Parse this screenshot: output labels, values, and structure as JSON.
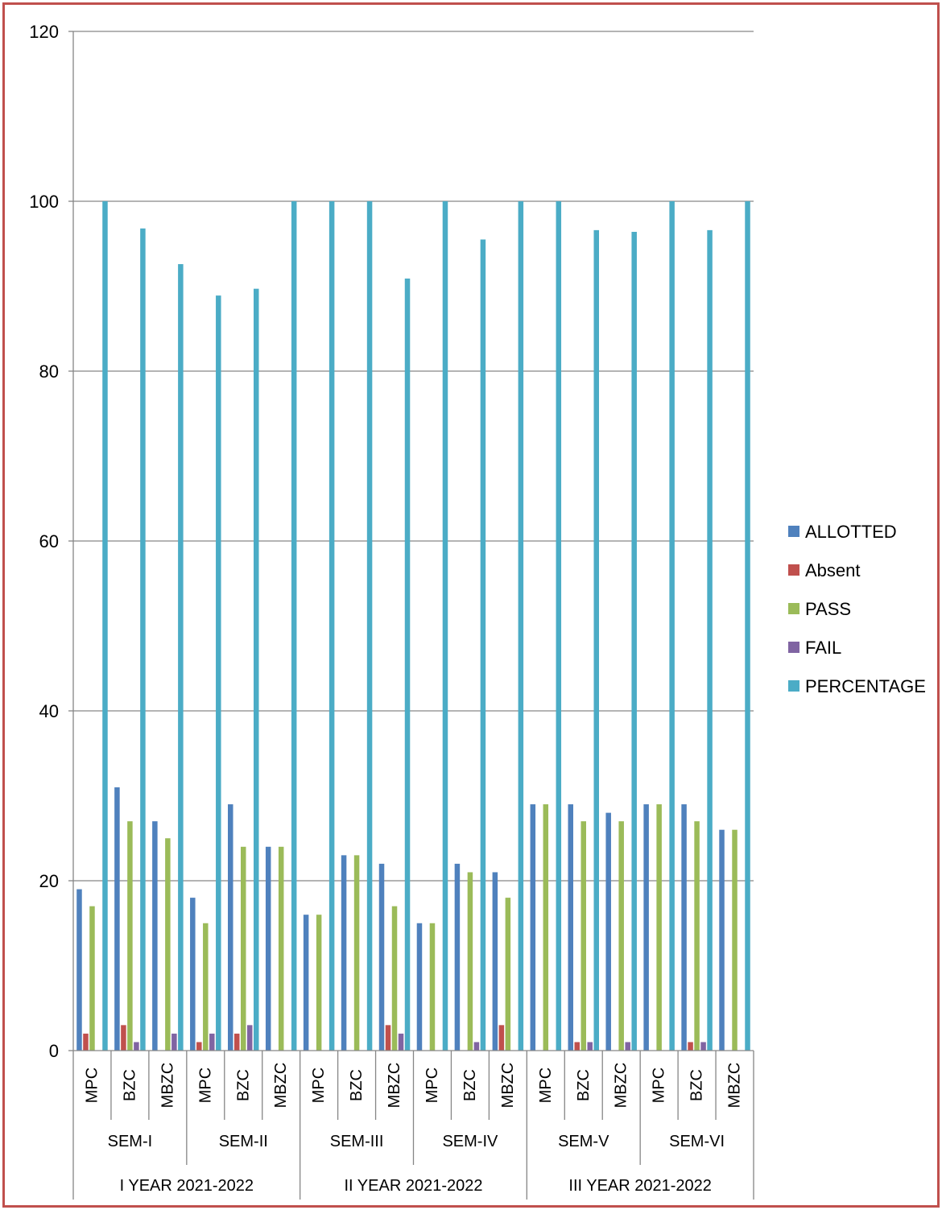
{
  "chart_data": {
    "type": "bar",
    "title": "",
    "xlabel": "",
    "ylabel": "",
    "ylim": [
      0,
      120
    ],
    "yticks": [
      0,
      20,
      40,
      60,
      80,
      100,
      120
    ],
    "grid": true,
    "legend_position": "right",
    "categories": [
      "MPC",
      "BZC",
      "MBZC",
      "MPC",
      "BZC",
      "MBZC",
      "MPC",
      "BZC",
      "MBZC",
      "MPC",
      "BZC",
      "MBZC",
      "MPC",
      "BZC",
      "MBZC",
      "MPC",
      "BZC",
      "MBZC"
    ],
    "semesters": [
      "SEM-I",
      "SEM-II",
      "SEM-III",
      "SEM-IV",
      "SEM-V",
      "SEM-VI"
    ],
    "years": [
      "I YEAR 2021-2022",
      "II YEAR 2021-2022",
      "III YEAR 2021-2022"
    ],
    "series": [
      {
        "name": "ALLOTTED",
        "color": "#4f81bd",
        "values": [
          19,
          31,
          27,
          18,
          29,
          24,
          16,
          23,
          22,
          15,
          22,
          21,
          29,
          29,
          28,
          29,
          29,
          26
        ]
      },
      {
        "name": "Absent",
        "color": "#c0504d",
        "values": [
          2,
          3,
          0,
          1,
          2,
          0,
          0,
          0,
          3,
          0,
          0,
          3,
          0,
          1,
          0,
          0,
          1,
          0
        ]
      },
      {
        "name": "PASS",
        "color": "#9bbb59",
        "values": [
          17,
          27,
          25,
          15,
          24,
          24,
          16,
          23,
          17,
          15,
          21,
          18,
          29,
          27,
          27,
          29,
          27,
          26
        ]
      },
      {
        "name": "FAIL",
        "color": "#8064a2",
        "values": [
          0,
          1,
          2,
          2,
          3,
          0,
          0,
          0,
          2,
          0,
          1,
          0,
          0,
          1,
          1,
          0,
          1,
          0
        ]
      },
      {
        "name": "PERCENTAGE",
        "color": "#4bacc6",
        "values": [
          100,
          96.8,
          92.6,
          88.9,
          89.7,
          100,
          100,
          100,
          90.9,
          100,
          95.5,
          100,
          100,
          96.6,
          96.4,
          100,
          96.6,
          100
        ]
      }
    ]
  },
  "colors": {
    "frame_border": "#c0504d",
    "gridline": "#868686",
    "axis": "#868686"
  }
}
